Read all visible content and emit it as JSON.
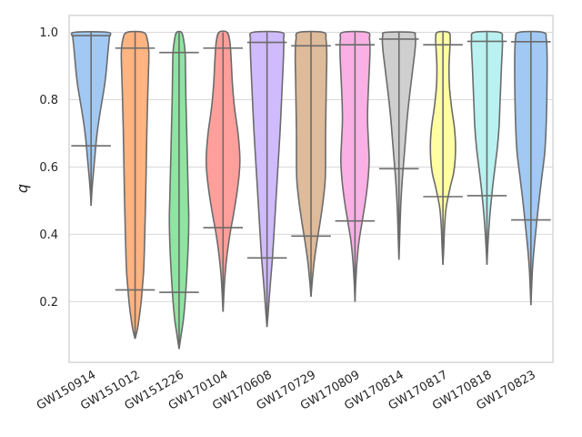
{
  "chart_data": {
    "type": "violin",
    "ylabel": "q",
    "xlabel": "",
    "ylim": [
      0.02,
      1.05
    ],
    "yticks": [
      0.2,
      0.4,
      0.6,
      0.8,
      1.0
    ],
    "ytick_labels": [
      "0.2",
      "0.4",
      "0.6",
      "0.8",
      "1.0"
    ],
    "grid": true,
    "events": [
      {
        "name": "GW150914",
        "color": "#a1c9f4",
        "min": 0.485,
        "max": 1.0,
        "lower": 0.663,
        "upper": 0.99,
        "density": [
          [
            0.485,
            0.0
          ],
          [
            0.52,
            0.03
          ],
          [
            0.56,
            0.08
          ],
          [
            0.6,
            0.14
          ],
          [
            0.64,
            0.2
          ],
          [
            0.68,
            0.26
          ],
          [
            0.72,
            0.34
          ],
          [
            0.76,
            0.44
          ],
          [
            0.8,
            0.55
          ],
          [
            0.84,
            0.66
          ],
          [
            0.88,
            0.74
          ],
          [
            0.92,
            0.8
          ],
          [
            0.96,
            0.86
          ],
          [
            0.985,
            0.9
          ],
          [
            1.0,
            0.82
          ]
        ]
      },
      {
        "name": "GW151012",
        "color": "#ffb482",
        "min": 0.09,
        "max": 1.0,
        "lower": 0.235,
        "upper": 0.953,
        "density": [
          [
            0.09,
            0.0
          ],
          [
            0.12,
            0.12
          ],
          [
            0.16,
            0.22
          ],
          [
            0.2,
            0.3
          ],
          [
            0.25,
            0.37
          ],
          [
            0.3,
            0.43
          ],
          [
            0.4,
            0.48
          ],
          [
            0.5,
            0.52
          ],
          [
            0.6,
            0.55
          ],
          [
            0.7,
            0.58
          ],
          [
            0.8,
            0.62
          ],
          [
            0.88,
            0.66
          ],
          [
            0.94,
            0.68
          ],
          [
            0.98,
            0.6
          ],
          [
            1.0,
            0.4
          ]
        ]
      },
      {
        "name": "GW151226",
        "color": "#8de5a1",
        "min": 0.06,
        "max": 1.0,
        "lower": 0.228,
        "upper": 0.94,
        "density": [
          [
            0.06,
            0.0
          ],
          [
            0.1,
            0.1
          ],
          [
            0.15,
            0.22
          ],
          [
            0.22,
            0.32
          ],
          [
            0.3,
            0.4
          ],
          [
            0.38,
            0.46
          ],
          [
            0.45,
            0.48
          ],
          [
            0.5,
            0.46
          ],
          [
            0.6,
            0.42
          ],
          [
            0.7,
            0.38
          ],
          [
            0.8,
            0.34
          ],
          [
            0.88,
            0.32
          ],
          [
            0.94,
            0.3
          ],
          [
            0.98,
            0.22
          ],
          [
            1.0,
            0.12
          ]
        ]
      },
      {
        "name": "GW170104",
        "color": "#ff9f9b",
        "min": 0.17,
        "max": 1.0,
        "lower": 0.42,
        "upper": 0.953,
        "density": [
          [
            0.17,
            0.0
          ],
          [
            0.22,
            0.04
          ],
          [
            0.28,
            0.1
          ],
          [
            0.34,
            0.2
          ],
          [
            0.4,
            0.34
          ],
          [
            0.46,
            0.52
          ],
          [
            0.52,
            0.68
          ],
          [
            0.58,
            0.8
          ],
          [
            0.63,
            0.83
          ],
          [
            0.7,
            0.74
          ],
          [
            0.78,
            0.56
          ],
          [
            0.85,
            0.46
          ],
          [
            0.92,
            0.4
          ],
          [
            0.97,
            0.34
          ],
          [
            1.0,
            0.2
          ]
        ]
      },
      {
        "name": "GW170608",
        "color": "#d0bbff",
        "min": 0.125,
        "max": 1.0,
        "lower": 0.33,
        "upper": 0.97,
        "density": [
          [
            0.125,
            0.0
          ],
          [
            0.17,
            0.06
          ],
          [
            0.22,
            0.12
          ],
          [
            0.28,
            0.2
          ],
          [
            0.34,
            0.28
          ],
          [
            0.42,
            0.36
          ],
          [
            0.5,
            0.44
          ],
          [
            0.6,
            0.54
          ],
          [
            0.7,
            0.64
          ],
          [
            0.8,
            0.72
          ],
          [
            0.88,
            0.78
          ],
          [
            0.94,
            0.82
          ],
          [
            0.98,
            0.82
          ],
          [
            1.0,
            0.7
          ]
        ]
      },
      {
        "name": "GW170729",
        "color": "#debb9b",
        "min": 0.215,
        "max": 1.0,
        "lower": 0.395,
        "upper": 0.96,
        "density": [
          [
            0.215,
            0.0
          ],
          [
            0.26,
            0.06
          ],
          [
            0.32,
            0.16
          ],
          [
            0.38,
            0.3
          ],
          [
            0.44,
            0.46
          ],
          [
            0.5,
            0.6
          ],
          [
            0.56,
            0.7
          ],
          [
            0.62,
            0.72
          ],
          [
            0.7,
            0.72
          ],
          [
            0.78,
            0.74
          ],
          [
            0.86,
            0.76
          ],
          [
            0.93,
            0.78
          ],
          [
            0.98,
            0.74
          ],
          [
            1.0,
            0.6
          ]
        ]
      },
      {
        "name": "GW170809",
        "color": "#fab0e4",
        "min": 0.2,
        "max": 1.0,
        "lower": 0.44,
        "upper": 0.963,
        "density": [
          [
            0.2,
            0.0
          ],
          [
            0.26,
            0.04
          ],
          [
            0.32,
            0.1
          ],
          [
            0.38,
            0.2
          ],
          [
            0.44,
            0.36
          ],
          [
            0.5,
            0.52
          ],
          [
            0.56,
            0.64
          ],
          [
            0.62,
            0.7
          ],
          [
            0.68,
            0.66
          ],
          [
            0.74,
            0.62
          ],
          [
            0.8,
            0.64
          ],
          [
            0.88,
            0.7
          ],
          [
            0.94,
            0.74
          ],
          [
            0.98,
            0.72
          ],
          [
            1.0,
            0.6
          ]
        ]
      },
      {
        "name": "GW170814",
        "color": "#cfcfcf",
        "min": 0.325,
        "max": 1.0,
        "lower": 0.595,
        "upper": 0.98,
        "density": [
          [
            0.325,
            0.0
          ],
          [
            0.38,
            0.03
          ],
          [
            0.44,
            0.06
          ],
          [
            0.5,
            0.1
          ],
          [
            0.56,
            0.16
          ],
          [
            0.62,
            0.24
          ],
          [
            0.68,
            0.32
          ],
          [
            0.74,
            0.4
          ],
          [
            0.8,
            0.5
          ],
          [
            0.86,
            0.62
          ],
          [
            0.9,
            0.7
          ],
          [
            0.94,
            0.78
          ],
          [
            0.97,
            0.82
          ],
          [
            0.99,
            0.8
          ],
          [
            1.0,
            0.66
          ]
        ]
      },
      {
        "name": "GW170817",
        "color": "#fffea3",
        "min": 0.31,
        "max": 1.0,
        "lower": 0.512,
        "upper": 0.963,
        "density": [
          [
            0.31,
            0.0
          ],
          [
            0.36,
            0.04
          ],
          [
            0.42,
            0.08
          ],
          [
            0.48,
            0.16
          ],
          [
            0.54,
            0.36
          ],
          [
            0.58,
            0.52
          ],
          [
            0.62,
            0.6
          ],
          [
            0.67,
            0.62
          ],
          [
            0.72,
            0.56
          ],
          [
            0.78,
            0.42
          ],
          [
            0.84,
            0.32
          ],
          [
            0.9,
            0.3
          ],
          [
            0.95,
            0.34
          ],
          [
            0.98,
            0.36
          ],
          [
            1.0,
            0.28
          ]
        ]
      },
      {
        "name": "GW170818",
        "color": "#b9f2f0",
        "min": 0.31,
        "max": 1.0,
        "lower": 0.515,
        "upper": 0.973,
        "density": [
          [
            0.31,
            0.0
          ],
          [
            0.36,
            0.04
          ],
          [
            0.42,
            0.1
          ],
          [
            0.48,
            0.18
          ],
          [
            0.54,
            0.28
          ],
          [
            0.6,
            0.4
          ],
          [
            0.66,
            0.52
          ],
          [
            0.72,
            0.6
          ],
          [
            0.78,
            0.64
          ],
          [
            0.84,
            0.68
          ],
          [
            0.9,
            0.72
          ],
          [
            0.95,
            0.76
          ],
          [
            0.98,
            0.76
          ],
          [
            1.0,
            0.62
          ]
        ]
      },
      {
        "name": "GW170823",
        "color": "#a1c9f4",
        "min": 0.19,
        "max": 1.0,
        "lower": 0.443,
        "upper": 0.972,
        "density": [
          [
            0.19,
            0.0
          ],
          [
            0.25,
            0.04
          ],
          [
            0.3,
            0.08
          ],
          [
            0.36,
            0.16
          ],
          [
            0.42,
            0.26
          ],
          [
            0.5,
            0.4
          ],
          [
            0.58,
            0.56
          ],
          [
            0.64,
            0.68
          ],
          [
            0.7,
            0.74
          ],
          [
            0.78,
            0.78
          ],
          [
            0.86,
            0.8
          ],
          [
            0.93,
            0.8
          ],
          [
            0.98,
            0.76
          ],
          [
            1.0,
            0.6
          ]
        ]
      }
    ]
  }
}
